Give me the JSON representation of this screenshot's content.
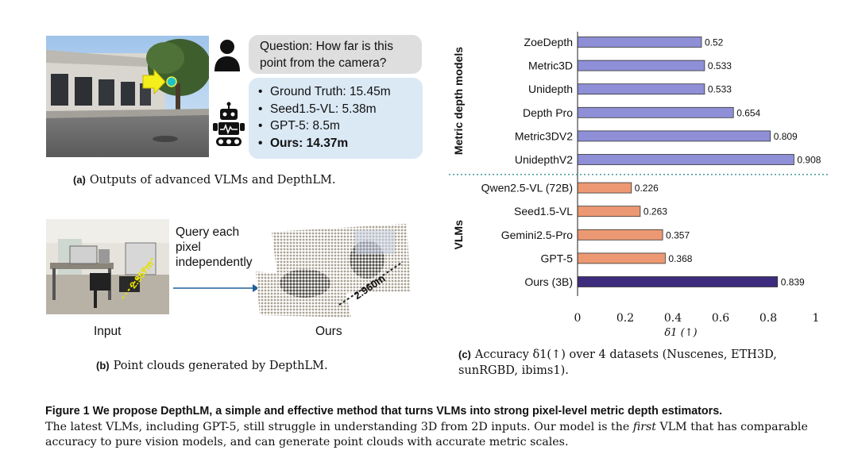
{
  "panel_a": {
    "question": "Question: How far is this point from the camera?",
    "answers": [
      {
        "text": "Ground Truth: 15.45m",
        "bold": false
      },
      {
        "text": "Seed1.5-VL: 5.38m",
        "bold": false
      },
      {
        "text": "GPT-5: 8.5m",
        "bold": false
      },
      {
        "text": "Ours: 14.37m",
        "bold": true
      }
    ],
    "caption_tag": "(a)",
    "caption_text": "Outputs of advanced VLMs and DepthLM."
  },
  "panel_b": {
    "query_line1": "Query each",
    "query_line2": "pixel",
    "query_line3": "independently",
    "input_label": "Input",
    "output_label": "Ours",
    "input_distance": "2.957m",
    "output_distance": "2.960m",
    "caption_tag": "(b)",
    "caption_text": "Point clouds generated by DepthLM."
  },
  "chart_data": {
    "type": "bar",
    "orientation": "horizontal",
    "groups": [
      {
        "name": "Metric depth models",
        "color": "#8e8fd6",
        "categories": [
          "ZoeDepth",
          "Metric3D",
          "Unidepth",
          "Depth Pro",
          "Metric3DV2",
          "UnidepthV2"
        ],
        "values": [
          0.52,
          0.533,
          0.533,
          0.654,
          0.809,
          0.908
        ],
        "labels": [
          "0.52",
          "0.533",
          "0.533",
          "0.654",
          "0.809",
          "0.908"
        ]
      },
      {
        "name": "VLMs",
        "color": "#ec9973",
        "categories": [
          "Qwen2.5-VL (72B)",
          "Seed1.5-VL",
          "Gemini2.5-Pro",
          "GPT-5",
          "Ours (3B)"
        ],
        "values": [
          0.226,
          0.263,
          0.357,
          0.368,
          0.839
        ],
        "labels": [
          "0.226",
          "0.263",
          "0.357",
          "0.368",
          "0.839"
        ],
        "highlight": {
          "category": "Ours (3B)",
          "color": "#3d2c7d"
        }
      }
    ],
    "xlim": [
      0,
      1
    ],
    "xticks": [
      "0",
      "0.2",
      "0.4",
      "0.6",
      "0.8",
      "1"
    ],
    "xlabel": "δ1 (↑)",
    "caption_tag": "(c)",
    "caption_line1": "Accuracy δ1(↑) over 4 datasets (Nuscenes, ETH3D,",
    "caption_line2": "sunRGBD, ibims1)."
  },
  "figure_caption": {
    "lead": "Figure 1  We propose DepthLM, a simple and effective method that turns VLMs into strong pixel-level metric depth estimators.",
    "text_before": "The latest VLMs, including GPT-5, still struggle in understanding 3D from 2D inputs. Our model is the ",
    "first_word": "first",
    "text_after": " VLM that has comparable accuracy to pure vision models, and can generate point clouds with accurate metric scales."
  },
  "colors": {
    "bubble_question": "#dedede",
    "bubble_answer": "#dbe9f5",
    "divider": "#2f8f96"
  }
}
